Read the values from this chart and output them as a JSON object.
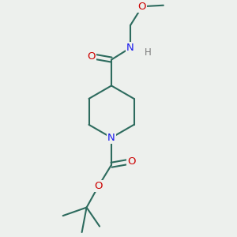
{
  "bg_color": "#edf0ed",
  "bond_color": "#2d6b5e",
  "bond_width": 1.5,
  "atom_colors": {
    "O": "#cc0000",
    "N": "#1a1aee",
    "H": "#7a7a7a",
    "C": "#2d6b5e"
  },
  "font_size_atoms": 8.5,
  "fig_size": [
    3.0,
    3.0
  ],
  "dpi": 100
}
